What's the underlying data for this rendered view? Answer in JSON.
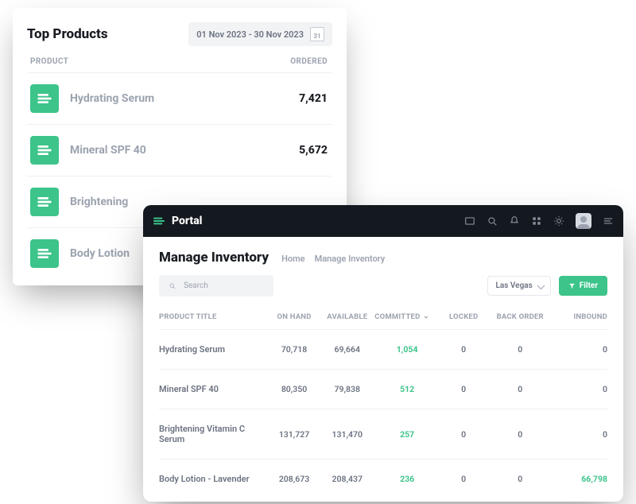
{
  "colors": {
    "green": "#3cc48a",
    "dark": "#14181f",
    "text": "#1a1d23",
    "muted": "#9ca3af",
    "body": "#6b7280"
  },
  "top_products": {
    "title": "Top Products",
    "date_range": "01 Nov 2023 - 30 Nov 2023",
    "calendar_day": "31",
    "columns": {
      "product": "PRODUCT",
      "ordered": "ORDERED"
    },
    "rows": [
      {
        "name": "Hydrating Serum",
        "ordered": "7,421"
      },
      {
        "name": "Mineral SPF 40",
        "ordered": "5,672"
      },
      {
        "name": "Brightening",
        "ordered": ""
      },
      {
        "name": "Body Lotion",
        "ordered": ""
      }
    ]
  },
  "portal": {
    "brand": "Portal",
    "page_title": "Manage Inventory",
    "breadcrumbs": [
      "Home",
      "Manage Inventory"
    ],
    "search_placeholder": "Search",
    "location": "Las Vegas",
    "filter_label": "Filter",
    "columns": [
      "PRODUCT TITLE",
      "ON HAND",
      "AVAILABLE",
      "COMMITTED",
      "LOCKED",
      "BACK ORDER",
      "INBOUND"
    ],
    "rows": [
      {
        "title": "Hydrating Serum",
        "on_hand": "70,718",
        "available": "69,664",
        "committed": "1,054",
        "locked": "0",
        "back_order": "0",
        "inbound": "0",
        "inbound_hl": false
      },
      {
        "title": "Mineral SPF 40",
        "on_hand": "80,350",
        "available": "79,838",
        "committed": "512",
        "locked": "0",
        "back_order": "0",
        "inbound": "0",
        "inbound_hl": false
      },
      {
        "title": "Brightening Vitamin C Serum",
        "on_hand": "131,727",
        "available": "131,470",
        "committed": "257",
        "locked": "0",
        "back_order": "0",
        "inbound": "0",
        "inbound_hl": false
      },
      {
        "title": "Body Lotion - Lavender",
        "on_hand": "208,673",
        "available": "208,437",
        "committed": "236",
        "locked": "0",
        "back_order": "0",
        "inbound": "66,798",
        "inbound_hl": true
      }
    ]
  }
}
